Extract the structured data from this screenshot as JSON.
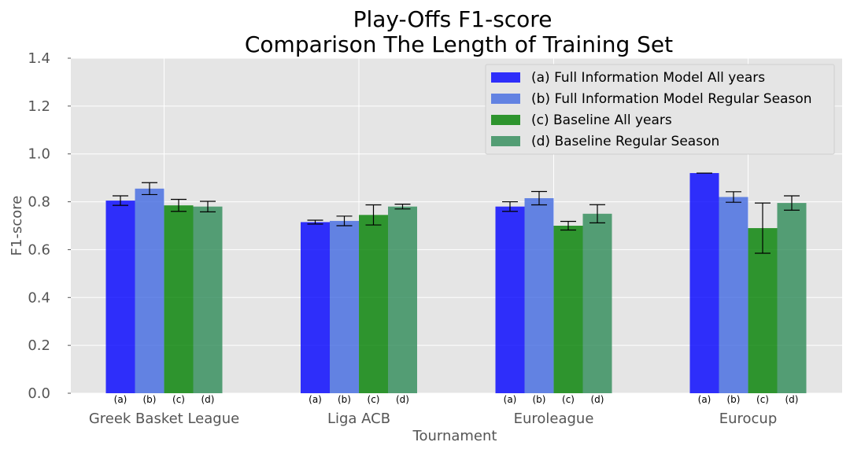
{
  "chart_data": {
    "type": "bar",
    "title_line1": "Play-Offs F1-score",
    "title_line2": "Comparison The Length of Training Set",
    "xlabel": "Tournament",
    "ylabel": "F1-score",
    "ylim": [
      0,
      1.4
    ],
    "yticks": [
      "0.0",
      "0.2",
      "0.4",
      "0.6",
      "0.8",
      "1.0",
      "1.2",
      "1.4"
    ],
    "grid": true,
    "legend_position": "top-right",
    "categories": [
      "Greek Basket League",
      "Liga ACB",
      "Euroleague",
      "Eurocup"
    ],
    "bar_sublabels": [
      "(a)",
      "(b)",
      "(c)",
      "(d)"
    ],
    "series": [
      {
        "name": "(a) Full Information Model All years",
        "color": "#0000ff",
        "values": [
          0.805,
          0.715,
          0.78,
          0.92
        ],
        "errors": [
          0.02,
          0.008,
          0.02,
          0.0
        ]
      },
      {
        "name": "(b) Full Information Model Regular Season",
        "color": "#4169e1",
        "values": [
          0.855,
          0.72,
          0.815,
          0.82
        ],
        "errors": [
          0.025,
          0.02,
          0.028,
          0.022
        ]
      },
      {
        "name": "(c) Baseline All years",
        "color": "#008000",
        "values": [
          0.785,
          0.745,
          0.7,
          0.69
        ],
        "errors": [
          0.025,
          0.042,
          0.018,
          0.105
        ]
      },
      {
        "name": "(d) Baseline Regular Season",
        "color": "#2e8b57",
        "values": [
          0.78,
          0.78,
          0.75,
          0.795
        ],
        "errors": [
          0.022,
          0.01,
          0.038,
          0.03
        ]
      }
    ]
  }
}
